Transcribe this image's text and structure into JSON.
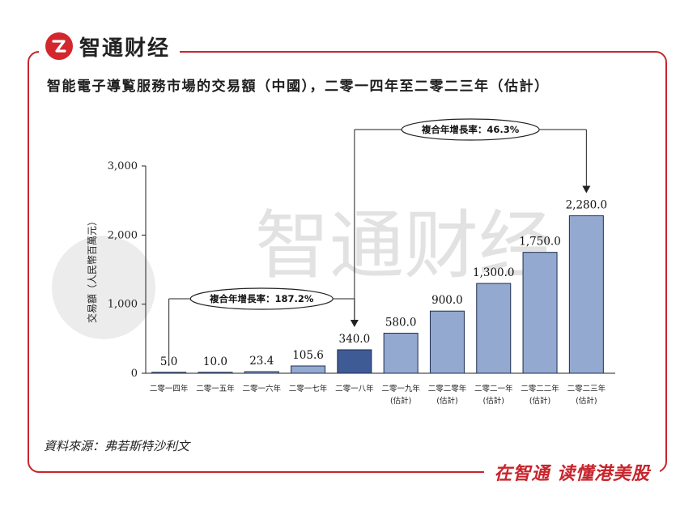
{
  "header": {
    "logo_text": "智通财经"
  },
  "footer": {
    "slogan": "在智通 读懂港美股"
  },
  "watermark": {
    "text": "智通财经"
  },
  "source": "資料來源：弗若斯特沙利文",
  "colors": {
    "brand_red": "#c8252c",
    "bar_fill": "#93a9cf",
    "bar_highlight": "#3f5b95",
    "bar_stroke": "#1f2d4f"
  },
  "chart_data": {
    "type": "bar",
    "title": "智能電子導覧服務市場的交易額（中國），二零一四年至二零二三年（估計）",
    "ylabel": "交易額（人民幣百萬元）",
    "xlabel": "",
    "ylim": [
      0,
      3000
    ],
    "yticks": [
      "0",
      "1,000",
      "2,000",
      "3,000"
    ],
    "categories": [
      [
        "二零一四年"
      ],
      [
        "二零一五年"
      ],
      [
        "二零一六年"
      ],
      [
        "二零一七年"
      ],
      [
        "二零一八年"
      ],
      [
        "二零一九年",
        "(估計)"
      ],
      [
        "二零二零年",
        "(估計)"
      ],
      [
        "二零二一年",
        "(估計)"
      ],
      [
        "二零二二年",
        "(估計)"
      ],
      [
        "二零二三年",
        "(估計)"
      ]
    ],
    "values": [
      5.0,
      10.0,
      23.4,
      105.6,
      340.0,
      580.0,
      900.0,
      1300.0,
      1750.0,
      2280.0
    ],
    "value_labels": [
      "5.0",
      "10.0",
      "23.4",
      "105.6",
      "340.0",
      "580.0",
      "900.0",
      "1,300.0",
      "1,750.0",
      "2,280.0"
    ],
    "highlight_index": 4,
    "annotations": [
      {
        "text": "複合年增長率：187.2%",
        "from_index": 0,
        "to_index": 4
      },
      {
        "text": "複合年增長率：46.3%",
        "from_index": 4,
        "to_index": 9
      }
    ],
    "grid": false,
    "legend": "none"
  }
}
